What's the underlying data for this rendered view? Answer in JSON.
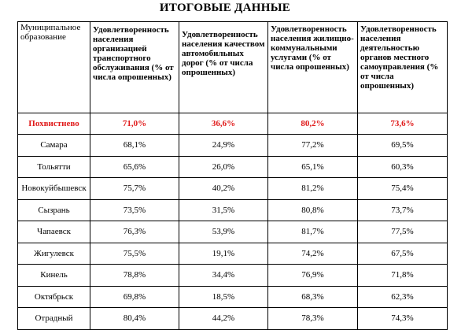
{
  "title": "ИТОГОВЫЕ ДАННЫЕ",
  "headers": [
    "Муниципальное образование",
    "Удовлетворенность населения организацией транспортного обслуживания (% от числа опрошенных)",
    "Удовлетворенность населения качеством автомобильных дорог (% от числа опрошенных)",
    "Удовлетворенность населения жилищно-коммунальными услугами (% от числа опрошенных)",
    "Удовлетворенность населения деятельностью органов местного самоуправления (% от числа опрошенных)"
  ],
  "rows": [
    {
      "name": "Похвистнево",
      "v": [
        "71,0%",
        "36,6%",
        "80,2%",
        "73,6%"
      ],
      "highlight": true
    },
    {
      "name": "Самара",
      "v": [
        "68,1%",
        "24,9%",
        "77,2%",
        "69,5%"
      ]
    },
    {
      "name": "Тольятти",
      "v": [
        "65,6%",
        "26,0%",
        "65,1%",
        "60,3%"
      ]
    },
    {
      "name": "Новокуйбышевск",
      "v": [
        "75,7%",
        "40,2%",
        "81,2%",
        "75,4%"
      ]
    },
    {
      "name": "Сызрань",
      "v": [
        "73,5%",
        "31,5%",
        "80,8%",
        "73,7%"
      ]
    },
    {
      "name": "Чапаевск",
      "v": [
        "76,3%",
        "53,9%",
        "81,7%",
        "77,5%"
      ]
    },
    {
      "name": "Жигулевск",
      "v": [
        "75,5%",
        "19,1%",
        "74,2%",
        "67,5%"
      ]
    },
    {
      "name": "Кинель",
      "v": [
        "78,8%",
        "34,4%",
        "76,9%",
        "71,8%"
      ]
    },
    {
      "name": "Октябрьск",
      "v": [
        "69,8%",
        "18,5%",
        "68,3%",
        "62,3%"
      ]
    },
    {
      "name": "Отрадный",
      "v": [
        "80,4%",
        "44,2%",
        "78,3%",
        "74,3%"
      ]
    }
  ]
}
